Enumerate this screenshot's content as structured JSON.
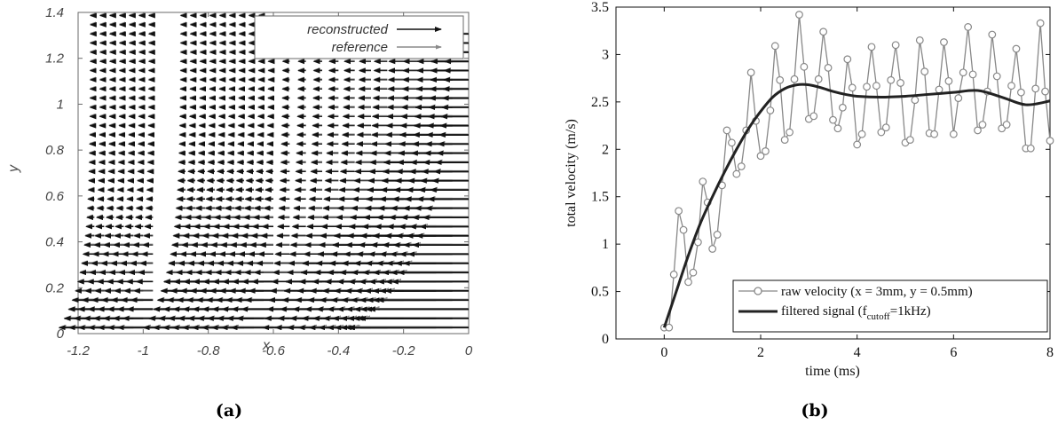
{
  "chart_data": [
    {
      "type": "quiver",
      "caption": "(a)",
      "xlabel": "x",
      "ylabel": "y",
      "xlim": [
        -1.2,
        0
      ],
      "ylim": [
        0,
        1.4
      ],
      "xticks": [
        "-1.2",
        "-1",
        "-0.8",
        "-0.6",
        "-0.4",
        "-0.2",
        "0"
      ],
      "yticks": [
        "0",
        "0.2",
        "0.4",
        "0.6",
        "0.8",
        "1",
        "1.2",
        "1.4"
      ],
      "legend": {
        "placement": "top-right",
        "entries": [
          "reconstructed",
          "reference"
        ]
      },
      "series": [
        {
          "name": "reconstructed",
          "color": "#111111"
        },
        {
          "name": "reference",
          "color": "#8a8a8a"
        }
      ],
      "field": {
        "description": "leftward (negative u) velocity vectors; strongest near y=0 at x in [-1.15,-0.95] and [-0.87,-0.62]; gap at x≈-0.9; weak field for x > -0.5",
        "x_grid": [
          -1.15,
          -1.12,
          -1.09,
          -1.06,
          -1.03,
          -1.0,
          -0.97,
          -0.87,
          -0.84,
          -0.81,
          -0.78,
          -0.75,
          -0.72,
          -0.69,
          -0.66,
          -0.63,
          -0.6,
          -0.55,
          -0.5,
          -0.45,
          -0.4,
          -0.35,
          -0.3,
          -0.25,
          -0.2,
          -0.15,
          -0.1,
          -0.05,
          0.0
        ],
        "y_grid": [
          0.03,
          0.07,
          0.11,
          0.15,
          0.19,
          0.23,
          0.27,
          0.31,
          0.35,
          0.39,
          0.43,
          0.47,
          0.51,
          0.55,
          0.59,
          0.63,
          0.67,
          0.71,
          0.75,
          0.79,
          0.83,
          0.87,
          0.91,
          0.95,
          0.99,
          1.03,
          1.07,
          1.11,
          1.15,
          1.19,
          1.23,
          1.27,
          1.31,
          1.35,
          1.39
        ]
      }
    },
    {
      "type": "line",
      "caption": "(b)",
      "xlabel": "time (ms)",
      "ylabel": "total velocity (m/s)",
      "xlim": [
        -1,
        8
      ],
      "ylim": [
        0,
        3.5
      ],
      "xticks": [
        "0",
        "2",
        "4",
        "6",
        "8"
      ],
      "yticks": [
        "0",
        "0.5",
        "1",
        "1.5",
        "2",
        "2.5",
        "3",
        "3.5"
      ],
      "legend": {
        "placement": "bottom-right",
        "raw_label": "raw velocity (x = 3mm, y = 0.5mm)",
        "filt_prefix": "filtered signal (f",
        "filt_sub": "cutoff",
        "filt_suffix": "=1kHz)"
      },
      "series": [
        {
          "name": "raw velocity (x = 3mm, y = 0.5mm)",
          "color": "#888888",
          "marker": "circle",
          "x": [
            0.0,
            0.1,
            0.2,
            0.3,
            0.4,
            0.5,
            0.6,
            0.7,
            0.8,
            0.9,
            1.0,
            1.1,
            1.2,
            1.3,
            1.4,
            1.5,
            1.6,
            1.7,
            1.8,
            1.9,
            2.0,
            2.1,
            2.2,
            2.3,
            2.4,
            2.5,
            2.6,
            2.7,
            2.8,
            2.9,
            3.0,
            3.1,
            3.2,
            3.3,
            3.4,
            3.5,
            3.6,
            3.7,
            3.8,
            3.9,
            4.0,
            4.1,
            4.2,
            4.3,
            4.4,
            4.5,
            4.6,
            4.7,
            4.8,
            4.9,
            5.0,
            5.1,
            5.2,
            5.3,
            5.4,
            5.5,
            5.6,
            5.7,
            5.8,
            5.9,
            6.0,
            6.1,
            6.2,
            6.3,
            6.4,
            6.5,
            6.6,
            6.7,
            6.8,
            6.9,
            7.0,
            7.1,
            7.2,
            7.3,
            7.4,
            7.5,
            7.6,
            7.7,
            7.8,
            7.9,
            8.0
          ],
          "y": [
            0.12,
            0.12,
            0.68,
            1.35,
            1.15,
            0.6,
            0.7,
            1.02,
            1.66,
            1.44,
            0.95,
            1.1,
            1.62,
            2.2,
            2.07,
            1.74,
            1.82,
            2.2,
            2.81,
            2.3,
            1.93,
            1.98,
            2.41,
            3.09,
            2.73,
            2.1,
            2.18,
            2.74,
            3.42,
            2.87,
            2.32,
            2.35,
            2.74,
            3.24,
            2.86,
            2.31,
            2.22,
            2.44,
            2.95,
            2.65,
            2.05,
            2.16,
            2.66,
            3.08,
            2.67,
            2.18,
            2.23,
            2.73,
            3.1,
            2.7,
            2.07,
            2.1,
            2.52,
            3.15,
            2.82,
            2.17,
            2.16,
            2.63,
            3.13,
            2.72,
            2.16,
            2.54,
            2.81,
            3.29,
            2.79,
            2.2,
            2.26,
            2.61,
            3.21,
            2.77,
            2.22,
            2.26,
            2.67,
            3.06,
            2.6,
            2.01,
            2.01,
            2.64,
            3.33,
            2.61,
            2.09
          ]
        },
        {
          "name": "filtered signal (fcutoff=1kHz)",
          "color": "#222222",
          "x": [
            0.0,
            0.25,
            0.5,
            0.75,
            1.0,
            1.25,
            1.5,
            1.75,
            2.0,
            2.25,
            2.5,
            2.75,
            3.0,
            3.25,
            3.5,
            3.75,
            4.0,
            4.5,
            5.0,
            5.5,
            6.0,
            6.5,
            7.0,
            7.5,
            8.0
          ],
          "y": [
            0.12,
            0.5,
            0.88,
            1.22,
            1.5,
            1.76,
            2.0,
            2.22,
            2.4,
            2.55,
            2.64,
            2.68,
            2.68,
            2.65,
            2.61,
            2.58,
            2.56,
            2.55,
            2.56,
            2.58,
            2.6,
            2.62,
            2.55,
            2.47,
            2.51
          ]
        }
      ]
    }
  ]
}
